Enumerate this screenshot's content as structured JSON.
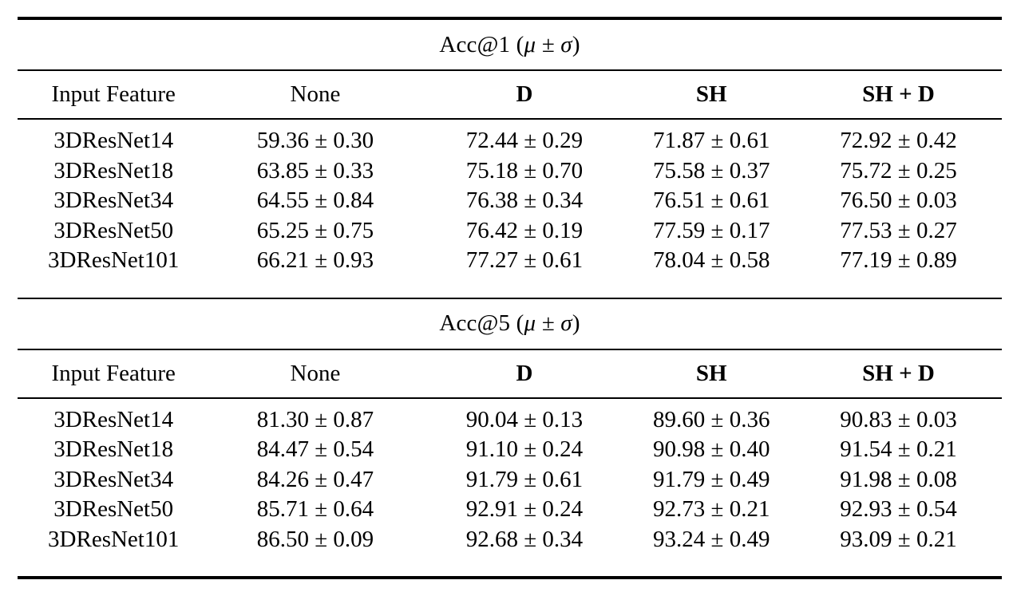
{
  "page": {
    "background": "#ffffff",
    "text_color": "#000000"
  },
  "tables": [
    {
      "title_prefix": "Acc@1 (",
      "title_math": "μ ± σ",
      "title_suffix": ")",
      "columns": [
        "Input Feature",
        "None",
        "D",
        "SH",
        "SH + D"
      ],
      "rows": [
        [
          "3DResNet14",
          "59.36 ± 0.30",
          "72.44 ± 0.29",
          "71.87 ± 0.61",
          "72.92 ± 0.42"
        ],
        [
          "3DResNet18",
          "63.85 ± 0.33",
          "75.18 ± 0.70",
          "75.58 ± 0.37",
          "75.72 ± 0.25"
        ],
        [
          "3DResNet34",
          "64.55 ± 0.84",
          "76.38 ± 0.34",
          "76.51 ± 0.61",
          "76.50 ± 0.03"
        ],
        [
          "3DResNet50",
          "65.25 ± 0.75",
          "76.42 ± 0.19",
          "77.59 ± 0.17",
          "77.53 ± 0.27"
        ],
        [
          "3DResNet101",
          "66.21 ± 0.93",
          "77.27 ± 0.61",
          "78.04 ± 0.58",
          "77.19 ± 0.89"
        ]
      ]
    },
    {
      "title_prefix": "Acc@5 (",
      "title_math": "μ ± σ",
      "title_suffix": ")",
      "columns": [
        "Input Feature",
        "None",
        "D",
        "SH",
        "SH + D"
      ],
      "rows": [
        [
          "3DResNet14",
          "81.30 ± 0.87",
          "90.04 ± 0.13",
          "89.60 ± 0.36",
          "90.83 ± 0.03"
        ],
        [
          "3DResNet18",
          "84.47 ± 0.54",
          "91.10 ± 0.24",
          "90.98 ± 0.40",
          "91.54 ± 0.21"
        ],
        [
          "3DResNet34",
          "84.26 ± 0.47",
          "91.79 ± 0.61",
          "91.79 ± 0.49",
          "91.98 ± 0.08"
        ],
        [
          "3DResNet50",
          "85.71 ± 0.64",
          "92.91 ± 0.24",
          "92.73 ± 0.21",
          "92.93 ± 0.54"
        ],
        [
          "3DResNet101",
          "86.50 ± 0.09",
          "92.68 ± 0.34",
          "93.24 ± 0.49",
          "93.09 ± 0.21"
        ]
      ]
    }
  ]
}
